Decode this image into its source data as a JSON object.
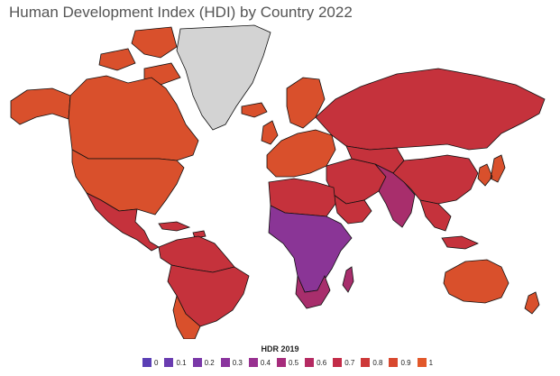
{
  "title": "Human Development Index (HDI) by Country 2022",
  "legend": {
    "title": "HDR 2019",
    "items": [
      {
        "label": "0",
        "color": "#5b3fb5"
      },
      {
        "label": "0.1",
        "color": "#6a3cb0"
      },
      {
        "label": "0.2",
        "color": "#7a38a8"
      },
      {
        "label": "0.3",
        "color": "#8a349e"
      },
      {
        "label": "0.4",
        "color": "#983090"
      },
      {
        "label": "0.5",
        "color": "#a62c7c"
      },
      {
        "label": "0.6",
        "color": "#b52a62"
      },
      {
        "label": "0.7",
        "color": "#c32c48"
      },
      {
        "label": "0.8",
        "color": "#cd3838"
      },
      {
        "label": "0.9",
        "color": "#d8482e"
      },
      {
        "label": "1",
        "color": "#e2582a"
      }
    ]
  },
  "colors": {
    "no_data": "#d3d3d3",
    "very_high": "#d9502c",
    "high": "#c5323c",
    "medium": "#a82e6c",
    "low": "#8a3596",
    "lowest": "#6b3ab0"
  }
}
